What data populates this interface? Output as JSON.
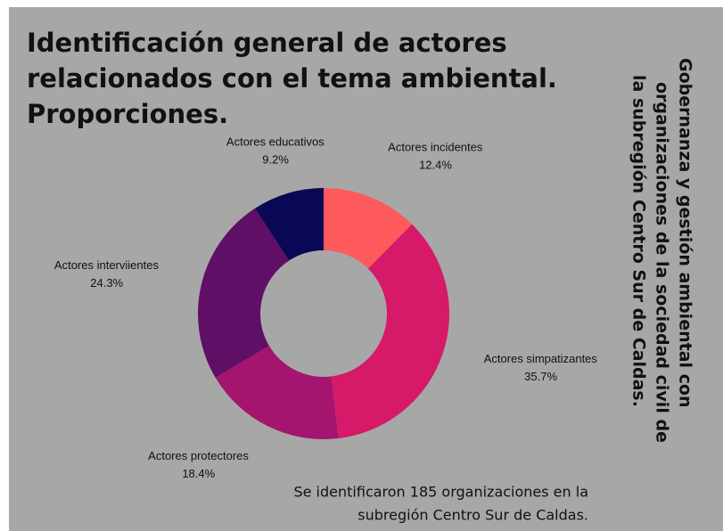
{
  "chart_data": {
    "type": "donut",
    "title": [
      "Identificación general de actores",
      "relacionados con el tema ambiental.",
      "Proporciones."
    ],
    "side_text": [
      "Gobernanza y gestión ambiental con",
      "organizaciones de la sociedad civil de",
      "la subregión Centro Sur de Caldas."
    ],
    "footnote": [
      "Se identificaron 185 organizaciones   en la",
      "subregión Centro Sur de Caldas."
    ],
    "categories": [
      "Actores incidentes",
      "Actores simpatizantes",
      "Actores protectores",
      "Actores interviientes",
      "Actores educativos"
    ],
    "values": [
      12.4,
      35.7,
      18.4,
      24.3,
      9.2
    ],
    "value_labels": [
      "12.4%",
      "35.7%",
      "18.4%",
      "24.3%",
      "9.2%"
    ],
    "colors": [
      "#ff5a5c",
      "#d7196a",
      "#a5146f",
      "#5f0f65",
      "#0a0856"
    ]
  }
}
